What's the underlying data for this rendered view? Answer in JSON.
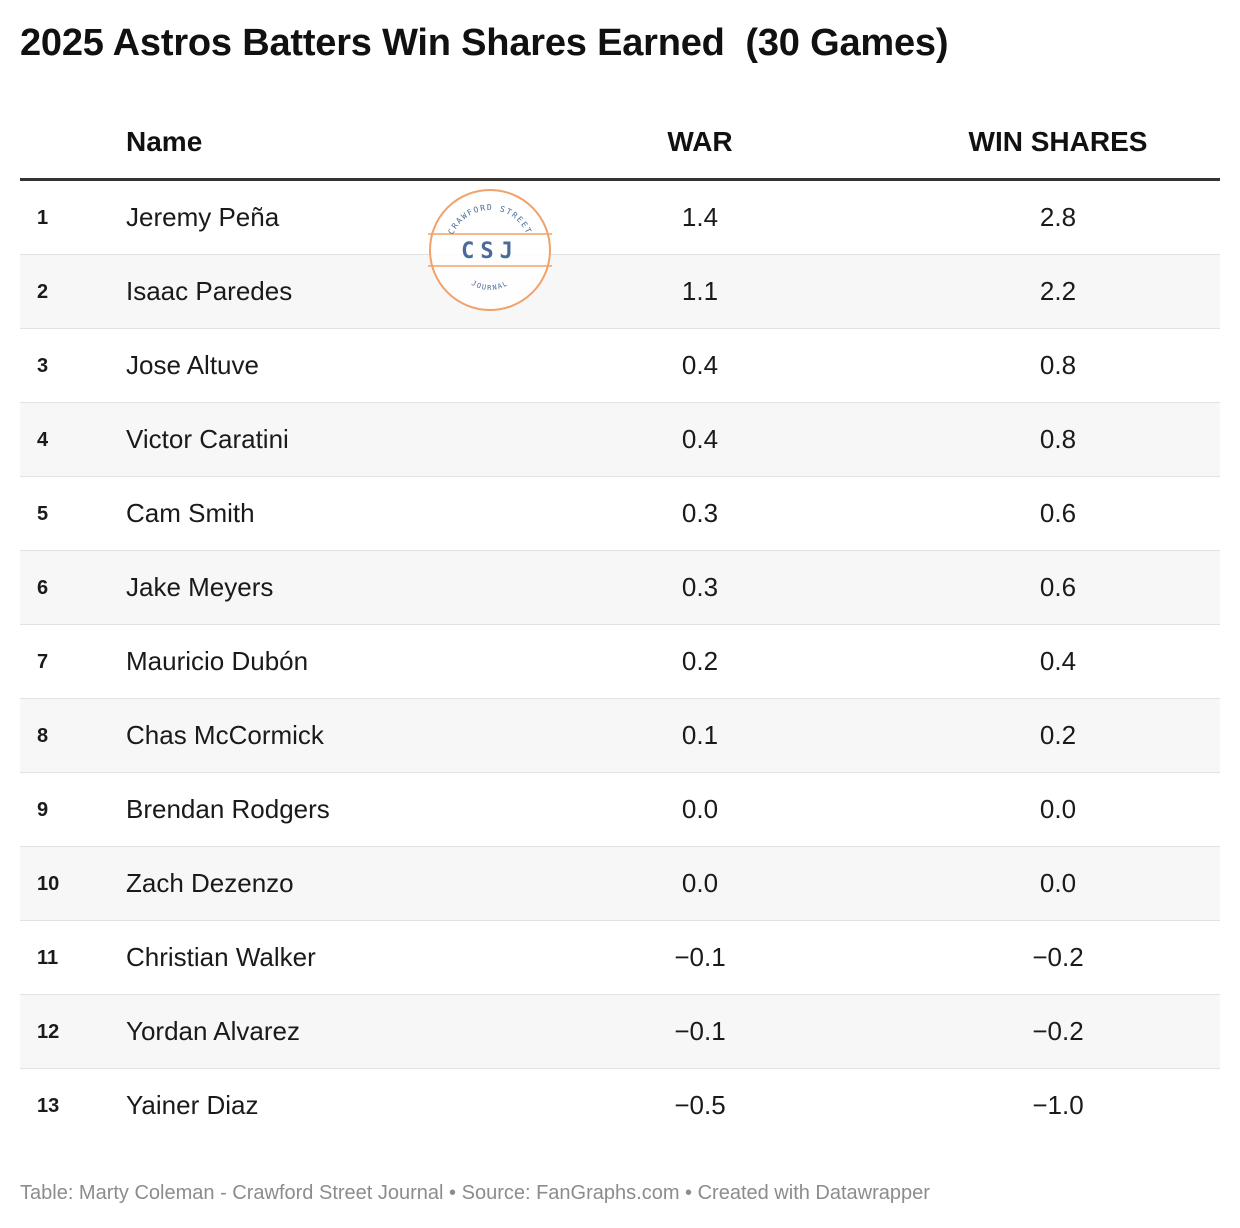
{
  "title": "2025 Astros Batters Win Shares Earned  (30 Games)",
  "footer": "Table: Marty Coleman - Crawford Street Journal • Source: FanGraphs.com • Created with Datawrapper",
  "logo": {
    "top_text": "CRAWFORD STREET",
    "center_text": "CSJ",
    "bottom_text": "JOURNAL",
    "ring_color": "#f0a26a",
    "text_color": "#4a6a9a"
  },
  "colors": {
    "stripe": "#f7f7f7",
    "header_rule": "#333333",
    "footer_text": "#8c8c8c"
  },
  "chart_data": {
    "type": "table",
    "columns": [
      "",
      "Name",
      "WAR",
      "WIN SHARES"
    ],
    "rows": [
      {
        "rank": "1",
        "name": "Jeremy Peña",
        "war": "1.4",
        "win_shares": "2.8"
      },
      {
        "rank": "2",
        "name": "Isaac Paredes",
        "war": "1.1",
        "win_shares": "2.2"
      },
      {
        "rank": "3",
        "name": "Jose Altuve",
        "war": "0.4",
        "win_shares": "0.8"
      },
      {
        "rank": "4",
        "name": "Victor Caratini",
        "war": "0.4",
        "win_shares": "0.8"
      },
      {
        "rank": "5",
        "name": "Cam Smith",
        "war": "0.3",
        "win_shares": "0.6"
      },
      {
        "rank": "6",
        "name": "Jake Meyers",
        "war": "0.3",
        "win_shares": "0.6"
      },
      {
        "rank": "7",
        "name": "Mauricio Dubón",
        "war": "0.2",
        "win_shares": "0.4"
      },
      {
        "rank": "8",
        "name": "Chas McCormick",
        "war": "0.1",
        "win_shares": "0.2"
      },
      {
        "rank": "9",
        "name": "Brendan Rodgers",
        "war": "0.0",
        "win_shares": "0.0"
      },
      {
        "rank": "10",
        "name": "Zach Dezenzo",
        "war": "0.0",
        "win_shares": "0.0"
      },
      {
        "rank": "11",
        "name": "Christian Walker",
        "war": "−0.1",
        "win_shares": "−0.2"
      },
      {
        "rank": "12",
        "name": "Yordan Alvarez",
        "war": "−0.1",
        "win_shares": "−0.2"
      },
      {
        "rank": "13",
        "name": "Yainer Diaz",
        "war": "−0.5",
        "win_shares": "−1.0"
      }
    ]
  }
}
